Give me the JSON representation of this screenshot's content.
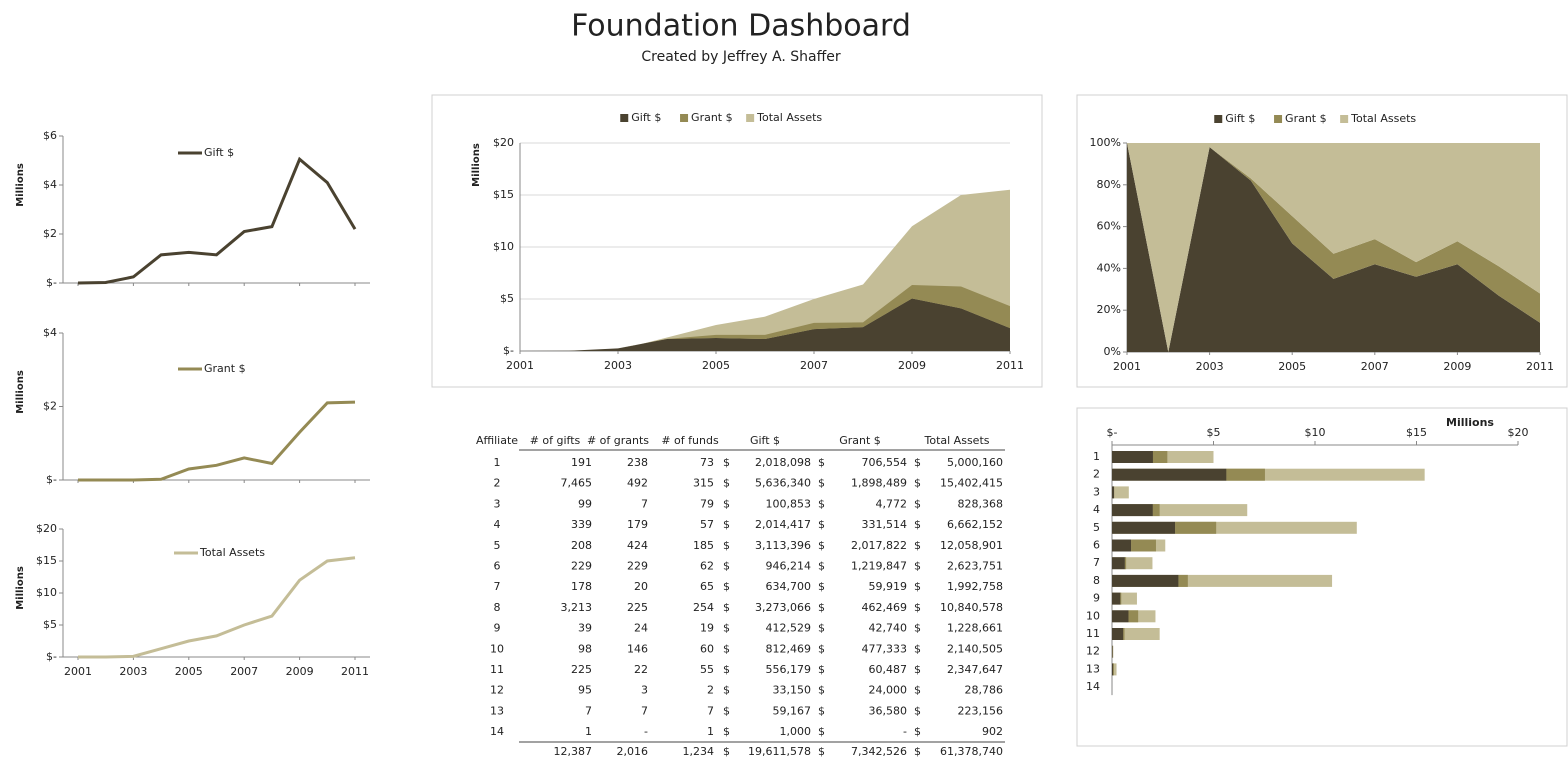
{
  "title": "Foundation Dashboard",
  "subtitle": "Created by Jeffrey A. Shaffer",
  "chart_data": [
    {
      "type": "line",
      "x": [
        2001,
        2002,
        2003,
        2004,
        2005,
        2006,
        2007,
        2008,
        2009,
        2010,
        2011
      ],
      "xlim": [
        2001,
        2011
      ],
      "xticks": [
        2001,
        2003,
        2005,
        2007,
        2009,
        2011
      ],
      "ylim": [
        0,
        6
      ],
      "yticks": [
        {
          "value": 0,
          "label": "$-"
        },
        {
          "value": 2,
          "label": "$2"
        },
        {
          "value": 4,
          "label": "$4"
        },
        {
          "value": 6,
          "label": "$6"
        }
      ],
      "y_label": "Millions",
      "series": [
        {
          "name": "Gift $",
          "color": "#4a4230",
          "values": [
            0,
            0.02,
            0.25,
            1.15,
            1.25,
            1.15,
            2.1,
            2.3,
            5.05,
            4.1,
            2.2
          ]
        }
      ]
    },
    {
      "type": "line",
      "x": [
        2001,
        2002,
        2003,
        2004,
        2005,
        2006,
        2007,
        2008,
        2009,
        2010,
        2011
      ],
      "xlim": [
        2001,
        2011
      ],
      "xticks": [
        2001,
        2003,
        2005,
        2007,
        2009,
        2011
      ],
      "ylim": [
        0,
        4
      ],
      "yticks": [
        {
          "value": 0,
          "label": "$-"
        },
        {
          "value": 2,
          "label": "$2"
        },
        {
          "value": 4,
          "label": "$4"
        }
      ],
      "y_label": "Millions",
      "series": [
        {
          "name": "Grant $",
          "color": "#948a54",
          "values": [
            0,
            0,
            0,
            0.02,
            0.3,
            0.4,
            0.6,
            0.45,
            1.3,
            2.1,
            2.12
          ]
        }
      ]
    },
    {
      "type": "line",
      "x": [
        2001,
        2002,
        2003,
        2004,
        2005,
        2006,
        2007,
        2008,
        2009,
        2010,
        2011
      ],
      "xlim": [
        2001,
        2011
      ],
      "xticks": [
        2001,
        2003,
        2005,
        2007,
        2009,
        2011
      ],
      "ylim": [
        0,
        20
      ],
      "yticks": [
        {
          "value": 0,
          "label": "$-"
        },
        {
          "value": 5,
          "label": "$5"
        },
        {
          "value": 10,
          "label": "$10"
        },
        {
          "value": 15,
          "label": "$15"
        },
        {
          "value": 20,
          "label": "$20"
        }
      ],
      "y_label": "Millions",
      "series": [
        {
          "name": "Total Assets",
          "color": "#c4bd97",
          "values": [
            0,
            0,
            0.1,
            1.3,
            2.5,
            3.3,
            5,
            6.4,
            12,
            15,
            15.5
          ]
        }
      ]
    },
    {
      "type": "area",
      "x": [
        2001,
        2002,
        2003,
        2004,
        2005,
        2006,
        2007,
        2008,
        2009,
        2010,
        2011
      ],
      "xlim": [
        2001,
        2011
      ],
      "xticks": [
        2001,
        2003,
        2005,
        2007,
        2009,
        2011
      ],
      "ylim": [
        0,
        20
      ],
      "yticks": [
        {
          "value": 0,
          "label": "$-"
        },
        {
          "value": 5,
          "label": "$5"
        },
        {
          "value": 10,
          "label": "$10"
        },
        {
          "value": 15,
          "label": "$15"
        },
        {
          "value": 20,
          "label": "$20"
        }
      ],
      "y_label": "Millions",
      "grid": true,
      "series": [
        {
          "name": "Gift $",
          "color": "#4a4230",
          "values": [
            0,
            0.02,
            0.25,
            1.15,
            1.25,
            1.15,
            2.1,
            2.3,
            5.05,
            4.1,
            2.2
          ]
        },
        {
          "name": "Grant $",
          "color": "#948a54",
          "values": [
            0,
            0,
            0,
            0.02,
            0.3,
            0.4,
            0.6,
            0.45,
            1.3,
            2.1,
            2.12
          ]
        },
        {
          "name": "Total Assets",
          "color": "#c4bd97",
          "values": [
            0,
            0,
            0.1,
            1.3,
            2.5,
            3.3,
            5,
            6.4,
            12,
            15,
            15.5
          ]
        }
      ]
    },
    {
      "type": "area",
      "stacked": true,
      "x": [
        2001,
        2002,
        2003,
        2004,
        2005,
        2006,
        2007,
        2008,
        2009,
        2010,
        2011
      ],
      "xlim": [
        2001,
        2011
      ],
      "xticks": [
        2001,
        2003,
        2005,
        2007,
        2009,
        2011
      ],
      "ylim": [
        0,
        100
      ],
      "yticks": [
        {
          "value": 0,
          "label": "0%"
        },
        {
          "value": 20,
          "label": "20%"
        },
        {
          "value": 40,
          "label": "40%"
        },
        {
          "value": 60,
          "label": "60%"
        },
        {
          "value": 80,
          "label": "80%"
        },
        {
          "value": 100,
          "label": "100%"
        }
      ],
      "series": [
        {
          "name": "Gift $",
          "color": "#4a4230",
          "values": [
            100,
            0,
            98,
            82,
            52,
            35,
            42,
            36,
            42,
            27,
            14
          ]
        },
        {
          "name": "Grant $",
          "color": "#948a54",
          "values": [
            0,
            0,
            0,
            1,
            13,
            12,
            12,
            7,
            11,
            14,
            14
          ]
        },
        {
          "name": "Total Assets",
          "color": "#c4bd97",
          "values": [
            0,
            100,
            2,
            17,
            35,
            53,
            46,
            57,
            47,
            59,
            72
          ]
        }
      ]
    },
    {
      "type": "bar",
      "orientation": "horizontal",
      "categories": [
        "1",
        "2",
        "3",
        "4",
        "5",
        "6",
        "7",
        "8",
        "9",
        "10",
        "11",
        "12",
        "13",
        "14"
      ],
      "xlim": [
        0,
        20
      ],
      "xticks": [
        {
          "value": 0,
          "label": "$-"
        },
        {
          "value": 5,
          "label": "$5"
        },
        {
          "value": 10,
          "label": "$10"
        },
        {
          "value": 15,
          "label": "$15"
        },
        {
          "value": 20,
          "label": "$20"
        }
      ],
      "x_label": "Millions",
      "series": [
        {
          "name": "Gift $",
          "color": "#4a4230",
          "values": [
            2.018,
            5.636,
            0.101,
            2.014,
            3.113,
            0.946,
            0.635,
            3.273,
            0.413,
            0.812,
            0.556,
            0.033,
            0.059,
            0.001
          ]
        },
        {
          "name": "Grant $",
          "color": "#948a54",
          "values": [
            0.707,
            1.898,
            0.005,
            0.332,
            2.018,
            1.22,
            0.06,
            0.462,
            0.043,
            0.477,
            0.06,
            0.024,
            0.037,
            0
          ]
        },
        {
          "name": "Total Assets",
          "color": "#c4bd97",
          "values": [
            5.0,
            15.402,
            0.828,
            6.662,
            12.059,
            2.624,
            1.993,
            10.841,
            1.229,
            2.141,
            2.348,
            0.029,
            0.223,
            0.001
          ]
        }
      ]
    }
  ],
  "table": {
    "currency_symbol": "$",
    "header": [
      "Affiliate",
      "# of gifts",
      "# of grants",
      "# of funds",
      "Gift $",
      "Grant $",
      "Total Assets"
    ],
    "rows": [
      [
        "1",
        "191",
        "238",
        "73",
        "2,018,098",
        "706,554",
        "5,000,160"
      ],
      [
        "2",
        "7,465",
        "492",
        "315",
        "5,636,340",
        "1,898,489",
        "15,402,415"
      ],
      [
        "3",
        "99",
        "7",
        "79",
        "100,853",
        "4,772",
        "828,368"
      ],
      [
        "4",
        "339",
        "179",
        "57",
        "2,014,417",
        "331,514",
        "6,662,152"
      ],
      [
        "5",
        "208",
        "424",
        "185",
        "3,113,396",
        "2,017,822",
        "12,058,901"
      ],
      [
        "6",
        "229",
        "229",
        "62",
        "946,214",
        "1,219,847",
        "2,623,751"
      ],
      [
        "7",
        "178",
        "20",
        "65",
        "634,700",
        "59,919",
        "1,992,758"
      ],
      [
        "8",
        "3,213",
        "225",
        "254",
        "3,273,066",
        "462,469",
        "10,840,578"
      ],
      [
        "9",
        "39",
        "24",
        "19",
        "412,529",
        "42,740",
        "1,228,661"
      ],
      [
        "10",
        "98",
        "146",
        "60",
        "812,469",
        "477,333",
        "2,140,505"
      ],
      [
        "11",
        "225",
        "22",
        "55",
        "556,179",
        "60,487",
        "2,347,647"
      ],
      [
        "12",
        "95",
        "3",
        "2",
        "33,150",
        "24,000",
        "28,786"
      ],
      [
        "13",
        "7",
        "7",
        "7",
        "59,167",
        "36,580",
        "223,156"
      ],
      [
        "14",
        "1",
        "-",
        "1",
        "1,000",
        "-",
        "902"
      ]
    ],
    "totals": [
      "12,387",
      "2,016",
      "1,234",
      "19,611,578",
      "7,342,526",
      "61,378,740"
    ]
  }
}
